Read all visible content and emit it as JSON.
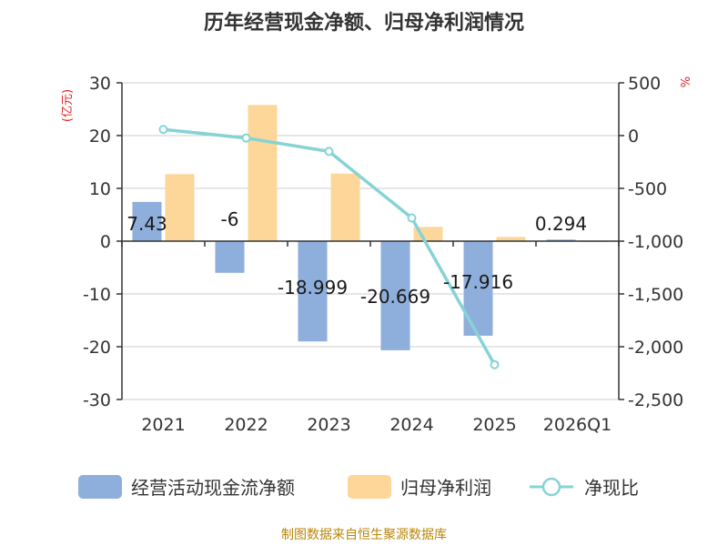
{
  "chart_data": {
    "type": "bar",
    "title": "历年经营现金净额、归母净利润情况",
    "categories": [
      "2021",
      "2022",
      "2023",
      "2024",
      "2025",
      "2026Q1"
    ],
    "left_axis": {
      "unit": "(亿元)",
      "min": -30,
      "max": 30,
      "ticks": [
        "30",
        "20",
        "10",
        "0",
        "-10",
        "-20",
        "-30"
      ],
      "tick_values": [
        30,
        20,
        10,
        0,
        -10,
        -20,
        -30
      ]
    },
    "right_axis": {
      "unit": "%",
      "min": -2500,
      "max": 500,
      "ticks": [
        "500",
        "0",
        "-500",
        "-1,000",
        "-1,500",
        "-2,000",
        "-2,500"
      ],
      "tick_values": [
        500,
        0,
        -500,
        -1000,
        -1500,
        -2000,
        -2500
      ]
    },
    "series": [
      {
        "name": "经营活动现金流净额",
        "type": "bar",
        "axis": "left",
        "color": "#8eaedb",
        "values": [
          7.43,
          -6,
          -18.999,
          -20.669,
          -17.916,
          0.294
        ],
        "labels": [
          "7.43",
          "-6",
          "-18.999",
          "-20.669",
          "-17.916",
          "0.294"
        ]
      },
      {
        "name": "归母净利润",
        "type": "bar",
        "axis": "left",
        "color": "#fcd799",
        "values": [
          12.7,
          25.8,
          12.8,
          2.7,
          0.8,
          0.1
        ]
      },
      {
        "name": "净现比",
        "type": "line",
        "axis": "right",
        "color": "#86d3d6",
        "values": [
          58,
          -23,
          -150,
          -780,
          -2170,
          null
        ]
      }
    ]
  },
  "source_note": "制图数据来自恒生聚源数据库"
}
